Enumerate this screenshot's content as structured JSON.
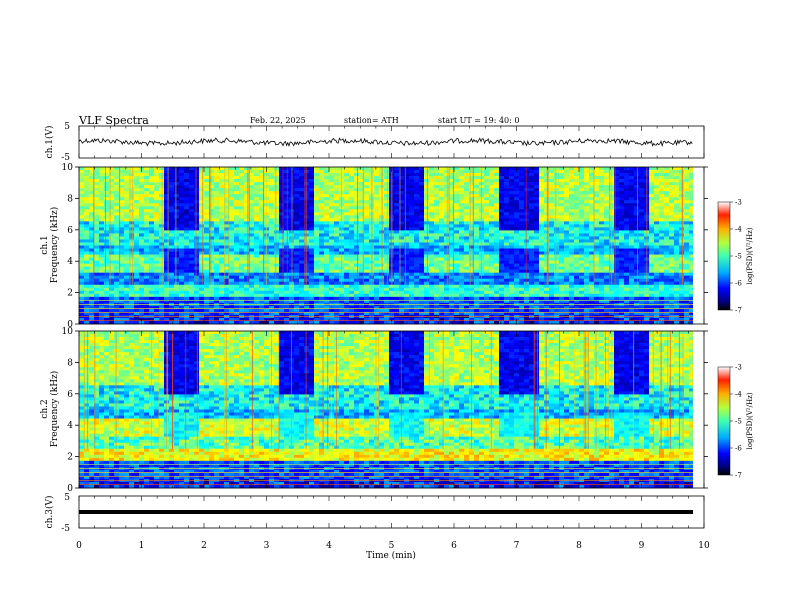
{
  "header": {
    "title": "VLF  Spectra",
    "date": "Feb. 22, 2025",
    "station": "station= ATH",
    "start": "start  UT  =   19: 40: 0"
  },
  "chart_data": [
    {
      "type": "line",
      "name": "ch1-waveform",
      "ylabel": "ch.1(V)",
      "ylim": [
        -5,
        5
      ],
      "yticks": [
        "5",
        "-5"
      ],
      "xlim": [
        0,
        10
      ],
      "approx_level": 0
    },
    {
      "type": "heatmap",
      "name": "ch1-spectrogram",
      "ylabel": "ch.1",
      "ylabel2": "Frequency  (kHz)",
      "ylim": [
        0,
        10
      ],
      "yticks": [
        "0",
        "2",
        "4",
        "6",
        "8",
        "10"
      ],
      "xlim": [
        0,
        10
      ],
      "sferic_bursts_min": [
        [
          1.35,
          1.9
        ],
        [
          3.15,
          3.7
        ],
        [
          4.9,
          5.5
        ],
        [
          6.7,
          7.3
        ],
        [
          8.55,
          9.05
        ]
      ],
      "colorbar": {
        "label": "log(PSD)(V²/Hz)",
        "ticks": [
          "-3",
          "-4",
          "-5",
          "-6",
          "-7"
        ],
        "range": [
          -7,
          -3
        ]
      }
    },
    {
      "type": "heatmap",
      "name": "ch2-spectrogram",
      "ylabel": "ch.2",
      "ylabel2": "Frequency  (kHz)",
      "ylim": [
        0,
        10
      ],
      "yticks": [
        "0",
        "2",
        "4",
        "6",
        "8",
        "10"
      ],
      "xlim": [
        0,
        10
      ],
      "sferic_bursts_min": [
        [
          1.35,
          1.9
        ],
        [
          3.15,
          3.7
        ],
        [
          4.9,
          5.5
        ],
        [
          6.7,
          7.3
        ],
        [
          8.55,
          9.05
        ]
      ],
      "colorbar": {
        "label": "log(PSD)(V²/Hz)",
        "ticks": [
          "-3",
          "-4",
          "-5",
          "-6",
          "-7"
        ],
        "range": [
          -7,
          -3
        ]
      }
    },
    {
      "type": "line",
      "name": "ch3-waveform",
      "ylabel": "ch.3(V)",
      "ylim": [
        -5,
        5
      ],
      "yticks": [
        "5",
        "-5"
      ],
      "xlim": [
        0,
        10
      ],
      "approx_level": -1
    }
  ],
  "xaxis": {
    "label": "Time  (min)",
    "ticks": [
      "0",
      "1",
      "2",
      "3",
      "4",
      "5",
      "6",
      "7",
      "8",
      "9",
      "10"
    ]
  },
  "colors": {
    "jet_low": "#00007f",
    "jet_mid": "#7fff7f",
    "jet_high": "#7f0000"
  }
}
